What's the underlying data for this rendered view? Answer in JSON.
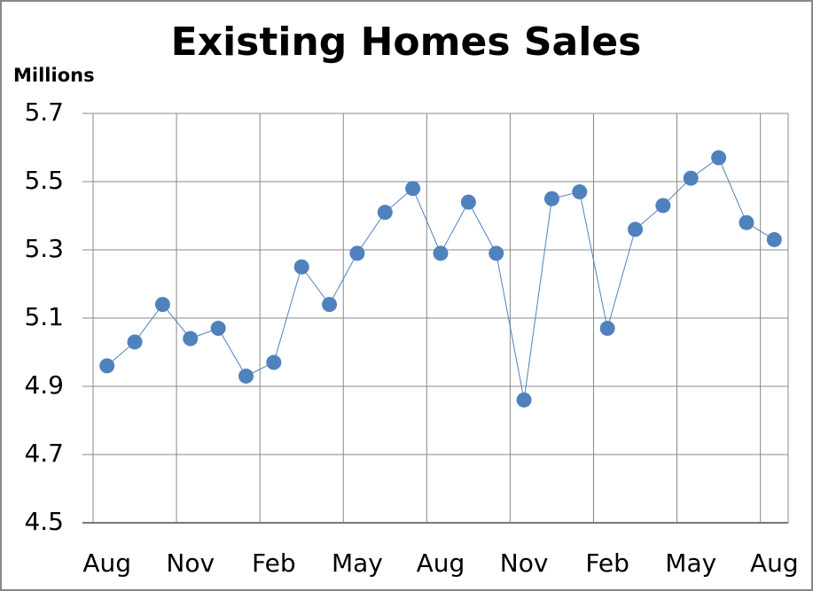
{
  "chart_data": {
    "type": "line",
    "title": "Existing Homes Sales",
    "y_axis_label": "Millions",
    "categories": [
      "Aug",
      null,
      null,
      "Nov",
      null,
      null,
      "Feb",
      null,
      null,
      "May",
      null,
      null,
      "Aug",
      null,
      null,
      "Nov",
      null,
      null,
      "Feb",
      null,
      null,
      "May",
      null,
      null,
      "Aug"
    ],
    "series": [
      {
        "name": "Existing Homes Sales",
        "color": "#4f81bd",
        "values": [
          4.96,
          5.03,
          5.14,
          5.04,
          5.07,
          4.93,
          4.97,
          5.25,
          5.14,
          5.29,
          5.41,
          5.48,
          5.29,
          5.44,
          5.29,
          4.86,
          5.45,
          5.47,
          5.07,
          5.36,
          5.43,
          5.51,
          5.57,
          5.38,
          5.33
        ]
      }
    ],
    "ylim": [
      4.5,
      5.7
    ],
    "yticks": [
      4.5,
      4.7,
      4.9,
      5.1,
      5.3,
      5.5,
      5.7
    ],
    "grid": true
  }
}
